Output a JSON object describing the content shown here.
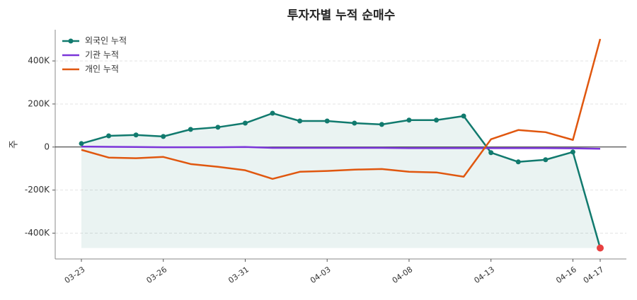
{
  "chart_data": {
    "type": "line",
    "title": "투자자별 누적 순매수",
    "y_label": "주",
    "categories": [
      "03-23",
      null,
      null,
      "03-26",
      null,
      null,
      "03-31",
      null,
      null,
      "04-03",
      null,
      null,
      "04-08",
      null,
      null,
      "04-13",
      null,
      null,
      "04-16",
      "04-17"
    ],
    "series": [
      {
        "name": "외국인 누적",
        "color": "#117a6e",
        "markers": true,
        "fill": true,
        "values": [
          16000,
          52000,
          56000,
          49000,
          82000,
          92000,
          111000,
          157000,
          121000,
          121000,
          111000,
          105000,
          125000,
          125000,
          144000,
          -26000,
          -69000,
          -59000,
          -23000,
          -469000
        ]
      },
      {
        "name": "기관 누적",
        "color": "#7b35d9",
        "markers": false,
        "fill": false,
        "values": [
          2000,
          1000,
          0,
          -1000,
          -1000,
          -1000,
          0,
          -4000,
          -4000,
          -4000,
          -4000,
          -4000,
          -5000,
          -5000,
          -5000,
          -5000,
          -5000,
          -5000,
          -6000,
          -8000
        ]
      },
      {
        "name": "개인 누적",
        "color": "#e0570f",
        "markers": false,
        "fill": false,
        "values": [
          -13000,
          -49000,
          -52000,
          -46000,
          -79000,
          -92000,
          -108000,
          -148000,
          -115000,
          -111000,
          -105000,
          -102000,
          -115000,
          -118000,
          -138000,
          36000,
          79000,
          69000,
          33000,
          502000
        ]
      }
    ],
    "ylim": [
      -520000,
      545000
    ],
    "yticks": [
      {
        "value": -400000,
        "label": "-400K"
      },
      {
        "value": -200000,
        "label": "-200K"
      },
      0,
      {
        "value": 200000,
        "label": "200K"
      },
      {
        "value": 400000,
        "label": "400K"
      }
    ],
    "grid": true,
    "legend": "upper left",
    "min_marker_color": "#e84040"
  }
}
